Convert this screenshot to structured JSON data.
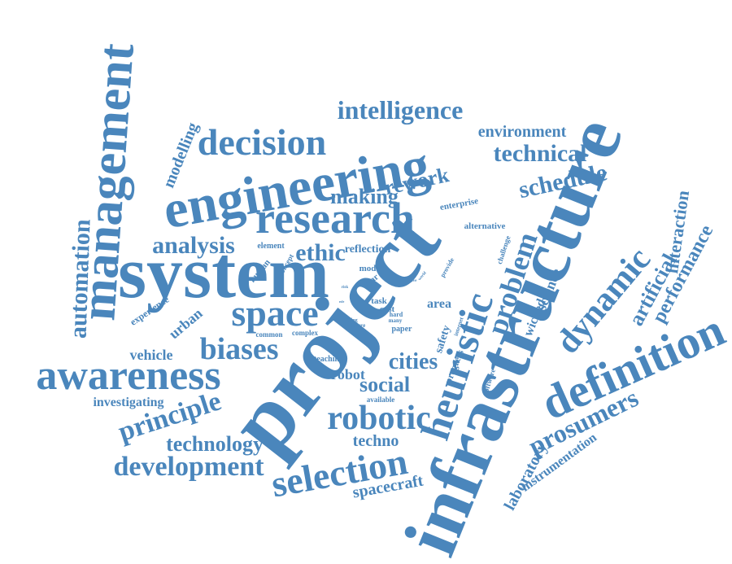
{
  "colors": {
    "word": "#4A86BC",
    "background": "#FFFFFF"
  },
  "words": [
    "project",
    "infrastructure",
    "system",
    "engineering",
    "management",
    "research",
    "awareness",
    "definition",
    "heuristic",
    "decision",
    "intelligence",
    "space",
    "selection",
    "robotic",
    "dynamic",
    "problem",
    "development",
    "principle",
    "biases",
    "technical",
    "schedule",
    "prosumers",
    "automation",
    "analysis",
    "making",
    "rework",
    "ethic",
    "cities",
    "social",
    "technology",
    "artificial",
    "performance",
    "interaction",
    "environment",
    "modelling",
    "laboratory",
    "instrumentation",
    "spacecraft",
    "techno",
    "investigating",
    "vehicle",
    "urban",
    "robot",
    "science",
    "wicked",
    "area",
    "safety",
    "progress",
    "experience",
    "reflection",
    "enterprise",
    "alternative",
    "human",
    "element",
    "concept",
    "challenge",
    "provide",
    "model",
    "year",
    "task",
    "cost",
    "hard",
    "paper",
    "common",
    "complex",
    "teaching",
    "available",
    "software",
    "internet",
    "many",
    "future",
    "thing",
    "world",
    "give",
    "risk",
    "role"
  ]
}
